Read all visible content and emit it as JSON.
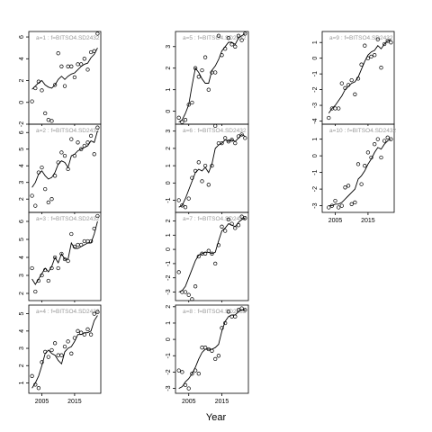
{
  "chart_data": {
    "type": "scatter",
    "xlabel": "Year",
    "x_ticks": [
      2005,
      2015
    ],
    "xlim": [
      2001,
      2023
    ],
    "panels": [
      {
        "label": "a=1 : f=BITSO4.SD2432",
        "ylim": [
          -2,
          6.5
        ],
        "yticks": [
          -2,
          0,
          2,
          4,
          6
        ],
        "points_x": [
          2002,
          2003,
          2004,
          2005,
          2006,
          2007,
          2008,
          2009,
          2010,
          2011,
          2012,
          2013,
          2014,
          2015,
          2016,
          2017,
          2018,
          2019,
          2020,
          2021,
          2022
        ],
        "points_y": [
          0.1,
          1.3,
          1.9,
          1.1,
          -1.0,
          -1.6,
          -1.7,
          1.6,
          4.5,
          3.3,
          1.5,
          3.3,
          3.3,
          2.3,
          3.5,
          3.5,
          4.0,
          3.0,
          4.6,
          4.7,
          6.3
        ],
        "line_y": [
          1.2,
          1.5,
          1.8,
          2.0,
          1.6,
          1.4,
          1.3,
          1.6,
          2.1,
          2.4,
          2.1,
          2.4,
          2.6,
          2.7,
          3.0,
          3.3,
          3.5,
          3.6,
          4.1,
          4.4,
          5.0
        ]
      },
      {
        "label": "a=2 : f=BITSO4.SD2432",
        "ylim": [
          1.2,
          6.5
        ],
        "yticks": [
          2,
          3,
          4,
          5,
          6
        ],
        "points_x": [
          2002,
          2003,
          2004,
          2005,
          2006,
          2007,
          2008,
          2009,
          2010,
          2011,
          2012,
          2013,
          2014,
          2015,
          2016,
          2017,
          2018,
          2019,
          2020,
          2021,
          2022
        ],
        "points_y": [
          2.2,
          1.6,
          3.6,
          3.9,
          2.6,
          1.8,
          2.0,
          3.4,
          4.2,
          4.8,
          4.6,
          3.8,
          5.6,
          4.6,
          5.4,
          5.0,
          5.2,
          5.4,
          5.8,
          4.7,
          6.3
        ],
        "line_y": [
          2.7,
          3.0,
          3.5,
          3.7,
          3.4,
          3.2,
          3.3,
          3.6,
          4.1,
          4.3,
          4.2,
          3.9,
          4.6,
          4.7,
          4.9,
          5.0,
          5.1,
          5.2,
          5.5,
          5.4,
          6.1
        ]
      },
      {
        "label": "a=3 : f=BITSO4.SD2432",
        "ylim": [
          1.6,
          6.5
        ],
        "yticks": [
          2,
          3,
          4,
          5,
          6
        ],
        "points_x": [
          2002,
          2003,
          2004,
          2005,
          2006,
          2007,
          2008,
          2009,
          2010,
          2011,
          2012,
          2013,
          2014,
          2015,
          2016,
          2017,
          2018,
          2019,
          2020,
          2021,
          2022
        ],
        "points_y": [
          3.4,
          2.1,
          2.7,
          3.0,
          3.3,
          2.7,
          3.4,
          4.0,
          3.4,
          4.2,
          3.9,
          3.8,
          5.3,
          4.6,
          4.7,
          4.7,
          4.9,
          4.9,
          4.9,
          5.6,
          6.3
        ],
        "line_y": [
          2.8,
          2.5,
          2.8,
          3.1,
          3.4,
          3.2,
          3.5,
          4.0,
          3.7,
          4.2,
          3.9,
          3.9,
          4.8,
          4.5,
          4.5,
          4.6,
          4.7,
          4.8,
          4.8,
          5.3,
          6.0
        ]
      },
      {
        "label": "a=4 : f=BITSO4.SD2432",
        "ylim": [
          0.4,
          5.5
        ],
        "yticks": [
          1,
          2,
          3,
          4,
          5
        ],
        "points_x": [
          2002,
          2003,
          2004,
          2005,
          2006,
          2007,
          2008,
          2009,
          2010,
          2011,
          2012,
          2013,
          2014,
          2015,
          2016,
          2017,
          2018,
          2019,
          2020,
          2021,
          2022
        ],
        "points_y": [
          1.4,
          0.9,
          0.7,
          2.2,
          2.8,
          2.5,
          2.9,
          3.3,
          2.6,
          2.6,
          3.1,
          3.4,
          2.7,
          3.6,
          4.0,
          3.9,
          3.8,
          4.1,
          3.8,
          5.0,
          5.1
        ],
        "line_y": [
          0.7,
          1.0,
          1.4,
          2.0,
          2.7,
          2.9,
          2.7,
          2.6,
          2.3,
          2.1,
          2.8,
          3.0,
          3.1,
          3.4,
          3.8,
          3.8,
          3.9,
          3.9,
          4.0,
          4.6,
          4.9
        ]
      },
      {
        "label": "a=5 : f=BITSO4.SD2432",
        "ylim": [
          -0.6,
          3.7
        ],
        "yticks": [
          0,
          1,
          2,
          3
        ],
        "points_x": [
          2002,
          2003,
          2004,
          2005,
          2006,
          2007,
          2008,
          2009,
          2010,
          2011,
          2012,
          2013,
          2014,
          2015,
          2016,
          2017,
          2018,
          2019,
          2020,
          2021,
          2022
        ],
        "points_y": [
          -0.3,
          -0.5,
          -0.4,
          0.3,
          0.4,
          2.0,
          1.6,
          1.9,
          2.5,
          1.0,
          1.8,
          1.8,
          3.5,
          2.6,
          2.9,
          3.4,
          3.1,
          3.0,
          3.5,
          3.3,
          3.6
        ],
        "line_y": [
          -0.5,
          -0.4,
          -0.1,
          0.3,
          1.2,
          2.0,
          1.8,
          1.5,
          1.3,
          1.3,
          1.9,
          2.1,
          2.4,
          2.8,
          3.0,
          3.2,
          3.2,
          3.1,
          3.4,
          3.5,
          3.6
        ]
      },
      {
        "label": "a=6 : f=BITSO4.SD2432",
        "ylim": [
          -1.7,
          3.4
        ],
        "yticks": [
          -1,
          0,
          1,
          2,
          3
        ],
        "points_x": [
          2002,
          2003,
          2004,
          2005,
          2006,
          2007,
          2008,
          2009,
          2010,
          2011,
          2012,
          2013,
          2014,
          2015,
          2016,
          2017,
          2018,
          2019,
          2020,
          2021,
          2022
        ],
        "points_y": [
          -1.0,
          -1.3,
          -1.4,
          -0.9,
          0.3,
          0.7,
          1.2,
          0.1,
          1.0,
          -0.1,
          1.0,
          3.3,
          2.3,
          2.3,
          2.6,
          2.4,
          2.5,
          2.3,
          2.7,
          2.8,
          2.6
        ],
        "line_y": [
          -1.4,
          -1.3,
          -0.9,
          -0.4,
          0.1,
          0.6,
          0.8,
          0.7,
          0.9,
          0.6,
          1.1,
          2.0,
          2.2,
          2.3,
          2.5,
          2.4,
          2.5,
          2.4,
          2.6,
          2.8,
          2.7
        ]
      },
      {
        "label": "a=7 : f=BITSO4.SD2432",
        "ylim": [
          -3.6,
          2.6
        ],
        "yticks": [
          -3,
          -2,
          -1,
          0,
          1,
          2
        ],
        "points_x": [
          2002,
          2003,
          2004,
          2005,
          2006,
          2007,
          2008,
          2009,
          2010,
          2011,
          2012,
          2013,
          2014,
          2015,
          2016,
          2017,
          2018,
          2019,
          2020,
          2021,
          2022
        ],
        "points_y": [
          -1.6,
          -3.0,
          -3.0,
          -3.2,
          -3.5,
          -2.6,
          -0.5,
          -0.3,
          -0.3,
          -0.1,
          -0.3,
          -1.0,
          0.3,
          1.6,
          1.3,
          2.1,
          1.8,
          1.5,
          1.7,
          2.3,
          2.2
        ],
        "line_y": [
          -3.0,
          -2.9,
          -2.6,
          -2.0,
          -1.4,
          -0.8,
          -0.4,
          -0.3,
          -0.2,
          -0.2,
          -0.3,
          -0.2,
          0.6,
          1.3,
          1.5,
          1.8,
          1.7,
          1.6,
          1.9,
          2.1,
          2.2
        ]
      },
      {
        "label": "a=8 : f=BITSO4.SD2432",
        "ylim": [
          -3.3,
          2.1
        ],
        "yticks": [
          -3,
          -2,
          -1,
          0,
          1,
          2
        ],
        "points_x": [
          2002,
          2003,
          2004,
          2005,
          2006,
          2007,
          2008,
          2009,
          2010,
          2011,
          2012,
          2013,
          2014,
          2015,
          2016,
          2017,
          2018,
          2019,
          2020,
          2021,
          2022
        ],
        "points_y": [
          -1.9,
          -2.0,
          -2.8,
          -3.0,
          -2.1,
          -1.9,
          -2.1,
          -0.5,
          -0.5,
          -0.6,
          -0.7,
          -1.2,
          -1.0,
          0.7,
          1.0,
          1.7,
          1.4,
          1.4,
          1.8,
          1.9,
          1.8
        ],
        "line_y": [
          -3.0,
          -2.9,
          -2.6,
          -2.4,
          -2.1,
          -1.7,
          -1.2,
          -0.8,
          -0.6,
          -0.6,
          -0.6,
          -0.5,
          -0.3,
          0.5,
          1.1,
          1.4,
          1.5,
          1.5,
          1.7,
          1.8,
          1.8
        ]
      },
      {
        "label": "a=9 : f=BITSO4.SD2432",
        "ylim": [
          -4.2,
          1.7
        ],
        "yticks": [
          -4,
          -3,
          -2,
          -1,
          0,
          1
        ],
        "points_x": [
          2003,
          2004,
          2005,
          2006,
          2007,
          2008,
          2009,
          2010,
          2011,
          2012,
          2013,
          2014,
          2015,
          2016,
          2017,
          2018,
          2019,
          2020,
          2021,
          2022
        ],
        "points_y": [
          -3.8,
          -3.2,
          -3.2,
          -3.2,
          -1.6,
          -1.9,
          -1.7,
          -1.4,
          -2.3,
          -1.3,
          -0.4,
          0.8,
          0.0,
          0.1,
          0.2,
          1.2,
          -0.6,
          0.9,
          1.1,
          1.0
        ],
        "line_y": [
          -3.5,
          -3.2,
          -3.0,
          -2.7,
          -2.4,
          -2.0,
          -1.8,
          -1.6,
          -1.5,
          -1.2,
          -0.7,
          -0.2,
          0.2,
          0.4,
          0.5,
          0.8,
          0.6,
          0.9,
          1.1,
          1.2
        ]
      },
      {
        "label": "a=10 : f=BITSO4.SD2432",
        "ylim": [
          -3.4,
          1.9
        ],
        "yticks": [
          -3,
          -2,
          -1,
          0,
          1
        ],
        "points_x": [
          2003,
          2004,
          2005,
          2006,
          2007,
          2008,
          2009,
          2010,
          2011,
          2012,
          2013,
          2014,
          2015,
          2016,
          2017,
          2018,
          2019,
          2020,
          2021,
          2022
        ],
        "points_y": [
          -3.1,
          -3.0,
          -2.7,
          -3.1,
          -3.0,
          -1.9,
          -1.8,
          -2.9,
          -2.8,
          -0.5,
          -1.7,
          -0.6,
          0.2,
          -0.1,
          0.7,
          1.0,
          -0.1,
          0.9,
          1.1,
          1.0
        ],
        "line_y": [
          -3.0,
          -3.0,
          -2.9,
          -2.9,
          -2.8,
          -2.6,
          -2.4,
          -2.2,
          -2.0,
          -1.4,
          -1.2,
          -0.9,
          -0.5,
          -0.2,
          0.2,
          0.5,
          0.4,
          0.7,
          0.9,
          1.0
        ]
      }
    ]
  }
}
